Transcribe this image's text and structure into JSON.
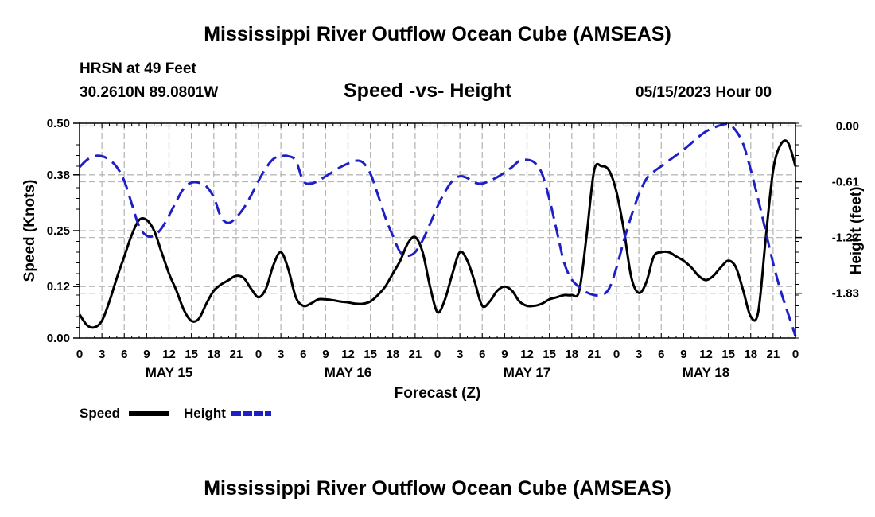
{
  "header": {
    "title": "Mississippi River Outflow Ocean Cube (AMSEAS)",
    "station_line1": "HRSN at 49 Feet",
    "station_line2": "30.2610N  89.0801W",
    "subtitle": "Speed -vs- Height",
    "datetime": "05/15/2023 Hour 00"
  },
  "footer": {
    "title": "Mississippi River Outflow Ocean Cube (AMSEAS)"
  },
  "legend": {
    "speed_label": "Speed",
    "height_label": "Height",
    "speed_color": "#000000",
    "height_color": "#1f1fc8"
  },
  "chart_data": {
    "type": "line",
    "title": "Speed -vs- Height",
    "xlabel": "Forecast (Z)",
    "ylabel": "Speed (Knots)",
    "y2label": "Height (feet)",
    "x_range_hours": [
      0,
      96
    ],
    "x_tick_labels": [
      "0",
      "3",
      "6",
      "9",
      "12",
      "15",
      "18",
      "21",
      "0",
      "3",
      "6",
      "9",
      "12",
      "15",
      "18",
      "21",
      "0",
      "3",
      "6",
      "9",
      "12",
      "15",
      "18",
      "21",
      "0",
      "3",
      "6",
      "9",
      "12",
      "15",
      "18",
      "21",
      "0"
    ],
    "day_labels": [
      {
        "label": "MAY 15",
        "hour": 12
      },
      {
        "label": "MAY 16",
        "hour": 36
      },
      {
        "label": "MAY 17",
        "hour": 60
      },
      {
        "label": "MAY 18",
        "hour": 84
      }
    ],
    "ylim": [
      0,
      0.5
    ],
    "yticks": [
      0.0,
      0.12,
      0.25,
      0.38,
      0.5
    ],
    "ytick_labels": [
      "0.00",
      "0.12",
      "0.25",
      "0.38",
      "0.50"
    ],
    "y2lim": [
      -2.32,
      0.03
    ],
    "y2ticks": [
      0.0,
      -0.61,
      -1.22,
      -1.83
    ],
    "y2tick_labels": [
      "0.00",
      "-0.61",
      "-1.22",
      "-1.83"
    ],
    "series": [
      {
        "name": "Speed",
        "axis": "left",
        "style": "solid",
        "color": "#000000",
        "x": [
          0,
          1,
          2,
          3,
          4,
          5,
          6,
          7,
          8,
          9,
          10,
          11,
          12,
          13,
          14,
          15,
          16,
          17,
          18,
          19,
          20,
          21,
          22,
          23,
          24,
          25,
          26,
          27,
          28,
          29,
          30,
          31,
          32,
          33,
          34,
          35,
          36,
          37,
          38,
          39,
          40,
          41,
          42,
          43,
          44,
          45,
          46,
          47,
          48,
          49,
          50,
          51,
          52,
          53,
          54,
          55,
          56,
          57,
          58,
          59,
          60,
          61,
          62,
          63,
          64,
          65,
          66,
          67,
          68,
          69,
          70,
          71,
          72,
          73,
          74,
          75,
          76,
          77,
          78,
          79,
          80,
          81,
          82,
          83,
          84,
          85,
          86,
          87,
          88,
          89,
          90,
          91,
          92,
          93,
          94,
          95,
          96
        ],
        "values": [
          0.055,
          0.03,
          0.025,
          0.04,
          0.085,
          0.14,
          0.19,
          0.24,
          0.275,
          0.275,
          0.25,
          0.2,
          0.15,
          0.11,
          0.065,
          0.04,
          0.045,
          0.08,
          0.11,
          0.125,
          0.135,
          0.145,
          0.14,
          0.115,
          0.095,
          0.115,
          0.17,
          0.2,
          0.16,
          0.095,
          0.075,
          0.08,
          0.09,
          0.09,
          0.088,
          0.085,
          0.083,
          0.08,
          0.08,
          0.085,
          0.1,
          0.12,
          0.15,
          0.18,
          0.22,
          0.235,
          0.2,
          0.12,
          0.06,
          0.09,
          0.15,
          0.2,
          0.18,
          0.13,
          0.075,
          0.085,
          0.11,
          0.12,
          0.11,
          0.085,
          0.075,
          0.075,
          0.08,
          0.09,
          0.095,
          0.1,
          0.1,
          0.11,
          0.24,
          0.39,
          0.4,
          0.39,
          0.34,
          0.25,
          0.14,
          0.105,
          0.13,
          0.19,
          0.2,
          0.2,
          0.19,
          0.18,
          0.165,
          0.145,
          0.135,
          0.145,
          0.165,
          0.18,
          0.165,
          0.11,
          0.05,
          0.06,
          0.23,
          0.39,
          0.45,
          0.455,
          0.4
        ]
      },
      {
        "name": "Height",
        "axis": "right",
        "style": "dashed",
        "color": "#1f1fc8",
        "x": [
          0,
          1,
          2,
          3,
          4,
          5,
          6,
          7,
          8,
          9,
          10,
          11,
          12,
          13,
          14,
          15,
          16,
          17,
          18,
          19,
          20,
          21,
          22,
          23,
          24,
          25,
          26,
          27,
          28,
          29,
          30,
          31,
          32,
          33,
          34,
          35,
          36,
          37,
          38,
          39,
          40,
          41,
          42,
          43,
          44,
          45,
          46,
          47,
          48,
          49,
          50,
          51,
          52,
          53,
          54,
          55,
          56,
          57,
          58,
          59,
          60,
          61,
          62,
          63,
          64,
          65,
          66,
          67,
          68,
          69,
          70,
          71,
          72,
          73,
          74,
          75,
          76,
          77,
          78,
          79,
          80,
          81,
          82,
          83,
          84,
          85,
          86,
          87,
          88,
          89,
          90,
          91,
          92,
          93,
          94,
          95,
          96
        ],
        "values": [
          -0.45,
          -0.37,
          -0.33,
          -0.33,
          -0.37,
          -0.45,
          -0.6,
          -0.85,
          -1.1,
          -1.2,
          -1.2,
          -1.12,
          -0.98,
          -0.82,
          -0.68,
          -0.62,
          -0.62,
          -0.66,
          -0.78,
          -1.0,
          -1.06,
          -1.0,
          -0.9,
          -0.76,
          -0.6,
          -0.46,
          -0.36,
          -0.33,
          -0.33,
          -0.38,
          -0.6,
          -0.63,
          -0.6,
          -0.55,
          -0.5,
          -0.45,
          -0.41,
          -0.38,
          -0.4,
          -0.52,
          -0.75,
          -1.0,
          -1.2,
          -1.38,
          -1.42,
          -1.38,
          -1.25,
          -1.07,
          -0.88,
          -0.72,
          -0.6,
          -0.55,
          -0.57,
          -0.62,
          -0.63,
          -0.6,
          -0.56,
          -0.51,
          -0.45,
          -0.38,
          -0.37,
          -0.4,
          -0.52,
          -0.8,
          -1.15,
          -1.5,
          -1.68,
          -1.76,
          -1.82,
          -1.85,
          -1.85,
          -1.78,
          -1.55,
          -1.25,
          -0.98,
          -0.75,
          -0.58,
          -0.5,
          -0.44,
          -0.38,
          -0.32,
          -0.26,
          -0.19,
          -0.12,
          -0.06,
          -0.02,
          0.01,
          0.02,
          -0.05,
          -0.2,
          -0.48,
          -0.8,
          -1.15,
          -1.5,
          -1.8,
          -2.05,
          -2.3
        ]
      }
    ]
  }
}
